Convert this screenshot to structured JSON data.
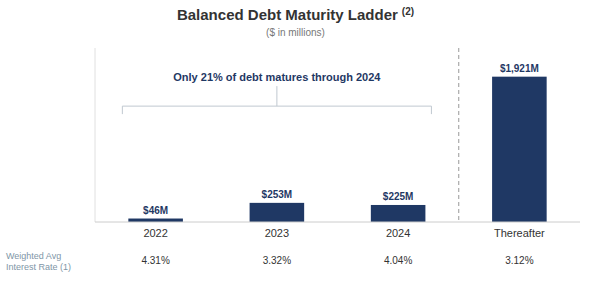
{
  "chart_data": {
    "type": "bar",
    "title": "Balanced Debt Maturity Ladder",
    "title_superscript": "(2)",
    "subtitle": "($ in millions)",
    "categories": [
      "2022",
      "2023",
      "2024",
      "Thereafter"
    ],
    "values": [
      46,
      253,
      225,
      1921
    ],
    "value_labels": [
      "$46M",
      "$253M",
      "$225M",
      "$1,921M"
    ],
    "data_labels": true,
    "color": "#1F3864",
    "ylim": [
      0,
      2300
    ],
    "tick_labels": "x",
    "annotation": "Only 21% of debt matures through 2024",
    "rates_label": "Weighted Avg\nInterest Rate (1)",
    "rates": [
      "4.31%",
      "3.32%",
      "4.04%",
      "3.12%"
    ]
  }
}
